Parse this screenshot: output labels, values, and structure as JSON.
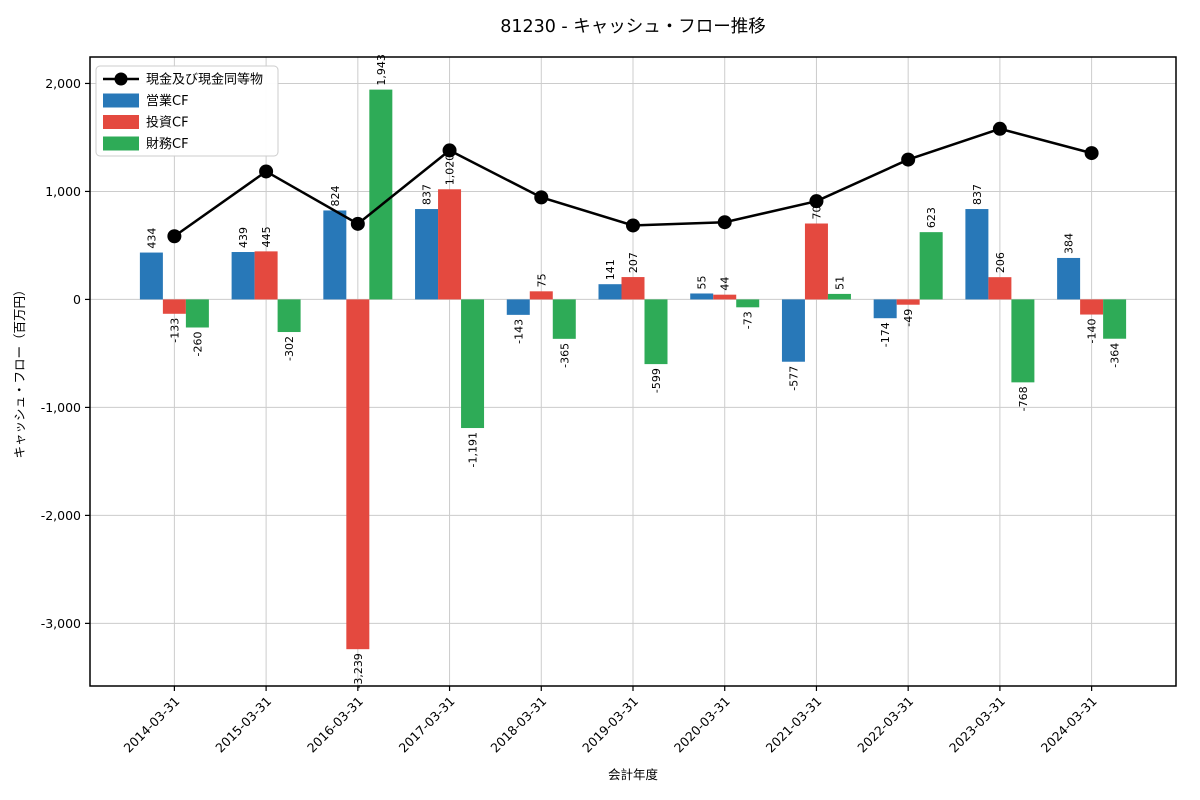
{
  "chart_data": {
    "type": "bar+line",
    "title": "81230 - キャッシュ・フロー推移",
    "xlabel": "会計年度",
    "ylabel": "キャッシュ・フロー（百万円）",
    "categories": [
      "2014-03-31",
      "2015-03-31",
      "2016-03-31",
      "2017-03-31",
      "2018-03-31",
      "2019-03-31",
      "2020-03-31",
      "2021-03-31",
      "2022-03-31",
      "2023-03-31",
      "2024-03-31"
    ],
    "series": [
      {
        "name": "現金及び現金同等物",
        "type": "line",
        "color": "#000000",
        "values": [
          585,
          1185,
          700,
          1380,
          945,
          685,
          715,
          910,
          1295,
          1580,
          1355
        ]
      },
      {
        "name": "営業CF",
        "type": "bar",
        "color": "#2878b8",
        "values": [
          434,
          439,
          824,
          837,
          -143,
          141,
          55,
          -577,
          -174,
          837,
          384
        ]
      },
      {
        "name": "投資CF",
        "type": "bar",
        "color": "#e4493f",
        "values": [
          -133,
          445,
          -3239,
          1020,
          75,
          207,
          44,
          703,
          -49,
          206,
          -140
        ]
      },
      {
        "name": "財務CF",
        "type": "bar",
        "color": "#2eab57",
        "values": [
          -260,
          -302,
          1943,
          -1191,
          -365,
          -599,
          -73,
          51,
          623,
          -768,
          -364
        ]
      }
    ],
    "yticks": [
      2000,
      1000,
      0,
      -1000,
      -2000,
      -3000
    ],
    "ylim": [
      -3580,
      2245
    ],
    "grid": true,
    "grid_color": "#cccccc",
    "legend_position": "upper-left",
    "bar_value_labels": true
  }
}
